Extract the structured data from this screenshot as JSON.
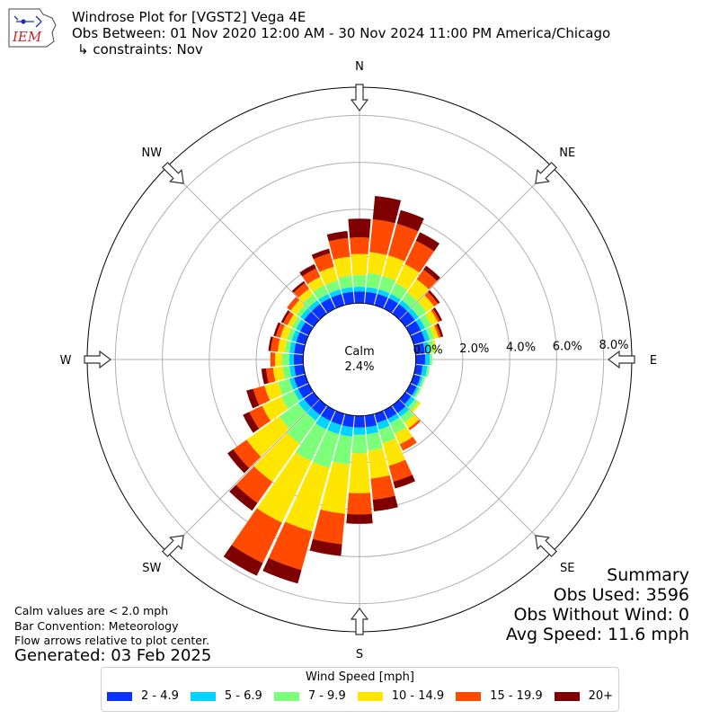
{
  "header": {
    "title": "Windrose Plot for [VGST2] Vega 4E",
    "subtitle": "Obs Between: 01 Nov 2020 12:00 AM - 30 Nov 2024 11:00 PM America/Chicago",
    "constraints": "↳ constraints: Nov"
  },
  "logo": {
    "text": "IEM",
    "color": "#cc2222"
  },
  "calm": {
    "label": "Calm",
    "value": "2.4%"
  },
  "notes": {
    "calm_note": "Calm values are < 2.0 mph",
    "bar_convention": "Bar Convention: Meteorology",
    "flow_note": "Flow arrows relative to plot center.",
    "generated": "Generated: 03 Feb 2025"
  },
  "summary": {
    "title": "Summary",
    "obs_used": "Obs Used: 3596",
    "obs_without_wind": "Obs Without Wind: 0",
    "avg_speed": "Avg Speed: 11.6 mph"
  },
  "legend": {
    "title": "Wind Speed [mph]",
    "items": [
      {
        "label": "2 - 4.9",
        "color": "#0a33ff"
      },
      {
        "label": "5 - 6.9",
        "color": "#00d4ff"
      },
      {
        "label": "7 - 9.9",
        "color": "#7cff79"
      },
      {
        "label": "10 - 14.9",
        "color": "#ffe600"
      },
      {
        "label": "15 - 19.9",
        "color": "#ff4a00"
      },
      {
        "label": "20+",
        "color": "#7f0000"
      }
    ]
  },
  "chart_data": {
    "type": "windrose",
    "radial_unit": "percent",
    "rlim": [
      -2.4,
      9.2
    ],
    "radial_ticks": [
      0,
      2,
      4,
      6,
      8
    ],
    "radial_tick_labels": [
      "0.0%",
      "2.0%",
      "4.0%",
      "6.0%",
      "8.0%"
    ],
    "compass_labels": [
      "N",
      "NE",
      "E",
      "SE",
      "S",
      "SW",
      "W",
      "NW"
    ],
    "grid": true,
    "legend_position": "bottom-center",
    "speed_bins": [
      "2 - 4.9",
      "5 - 6.9",
      "7 - 9.9",
      "10 - 14.9",
      "15 - 19.9",
      "20+"
    ],
    "directions": [
      {
        "dir": 0,
        "cum": [
          0.5,
          0.7,
          1.2,
          2.1,
          2.8,
          3.6
        ]
      },
      {
        "dir": 10,
        "cum": [
          0.5,
          0.7,
          1.3,
          2.2,
          3.6,
          4.6
        ]
      },
      {
        "dir": 20,
        "cum": [
          0.5,
          0.7,
          1.3,
          2.2,
          3.6,
          4.2
        ]
      },
      {
        "dir": 30,
        "cum": [
          0.5,
          0.7,
          1.2,
          2.1,
          3.2,
          3.6
        ]
      },
      {
        "dir": 40,
        "cum": [
          0.5,
          0.7,
          1.1,
          1.8,
          2.3,
          2.5
        ]
      },
      {
        "dir": 50,
        "cum": [
          0.5,
          0.7,
          1.1,
          1.5,
          1.7,
          1.8
        ]
      },
      {
        "dir": 60,
        "cum": [
          0.5,
          0.7,
          1.0,
          1.3,
          1.4,
          1.5
        ]
      },
      {
        "dir": 70,
        "cum": [
          0.5,
          0.7,
          0.9,
          1.1,
          1.2,
          1.3
        ]
      },
      {
        "dir": 80,
        "cum": [
          0.4,
          0.6,
          0.8,
          0.9,
          0.9,
          0.9
        ]
      },
      {
        "dir": 90,
        "cum": [
          0.4,
          0.6,
          0.7,
          0.7,
          0.7,
          0.7
        ]
      },
      {
        "dir": 100,
        "cum": [
          0.3,
          0.5,
          0.6,
          0.6,
          0.6,
          0.6
        ]
      },
      {
        "dir": 110,
        "cum": [
          0.3,
          0.4,
          0.5,
          0.5,
          0.5,
          0.5
        ]
      },
      {
        "dir": 120,
        "cum": [
          0.3,
          0.4,
          0.5,
          0.5,
          0.5,
          0.5
        ]
      },
      {
        "dir": 130,
        "cum": [
          0.3,
          0.5,
          0.7,
          0.8,
          0.8,
          0.8
        ]
      },
      {
        "dir": 140,
        "cum": [
          0.4,
          0.6,
          0.9,
          1.2,
          1.3,
          1.3
        ]
      },
      {
        "dir": 150,
        "cum": [
          0.4,
          0.6,
          1.1,
          1.6,
          1.9,
          1.9
        ]
      },
      {
        "dir": 160,
        "cum": [
          0.4,
          0.7,
          1.3,
          2.3,
          3.0,
          3.3
        ]
      },
      {
        "dir": 170,
        "cum": [
          0.5,
          0.8,
          1.5,
          2.7,
          3.6,
          4.1
        ]
      },
      {
        "dir": 180,
        "cum": [
          0.5,
          0.8,
          1.6,
          3.3,
          4.2,
          4.6
        ]
      },
      {
        "dir": 190,
        "cum": [
          0.5,
          0.9,
          2.1,
          4.2,
          5.5,
          6.0
        ]
      },
      {
        "dir": 200,
        "cum": [
          0.5,
          0.9,
          2.4,
          5.2,
          6.9,
          7.5
        ]
      },
      {
        "dir": 210,
        "cum": [
          0.5,
          0.9,
          2.4,
          5.3,
          7.2,
          7.8
        ]
      },
      {
        "dir": 220,
        "cum": [
          0.5,
          0.8,
          2.0,
          4.0,
          5.1,
          5.5
        ]
      },
      {
        "dir": 230,
        "cum": [
          0.5,
          0.8,
          1.8,
          3.5,
          4.2,
          4.5
        ]
      },
      {
        "dir": 240,
        "cum": [
          0.5,
          0.7,
          1.3,
          2.2,
          2.8,
          3.1
        ]
      },
      {
        "dir": 250,
        "cum": [
          0.5,
          0.7,
          1.2,
          1.8,
          2.3,
          2.6
        ]
      },
      {
        "dir": 260,
        "cum": [
          0.4,
          0.6,
          0.9,
          1.3,
          1.6,
          1.8
        ]
      },
      {
        "dir": 270,
        "cum": [
          0.4,
          0.6,
          0.9,
          1.2,
          1.4,
          1.4
        ]
      },
      {
        "dir": 280,
        "cum": [
          0.4,
          0.6,
          0.8,
          1.1,
          1.4,
          1.5
        ]
      },
      {
        "dir": 290,
        "cum": [
          0.4,
          0.6,
          0.8,
          1.1,
          1.3,
          1.4
        ]
      },
      {
        "dir": 300,
        "cum": [
          0.4,
          0.6,
          0.8,
          1.0,
          1.2,
          1.3
        ]
      },
      {
        "dir": 310,
        "cum": [
          0.5,
          0.7,
          0.9,
          1.2,
          1.4,
          1.4
        ]
      },
      {
        "dir": 320,
        "cum": [
          0.5,
          0.7,
          1.0,
          1.3,
          1.6,
          1.7
        ]
      },
      {
        "dir": 330,
        "cum": [
          0.5,
          0.7,
          1.1,
          1.5,
          1.9,
          2.1
        ]
      },
      {
        "dir": 340,
        "cum": [
          0.5,
          0.7,
          1.1,
          1.7,
          2.3,
          2.5
        ]
      },
      {
        "dir": 350,
        "cum": [
          0.5,
          0.7,
          1.2,
          2.0,
          2.8,
          3.1
        ]
      }
    ]
  }
}
